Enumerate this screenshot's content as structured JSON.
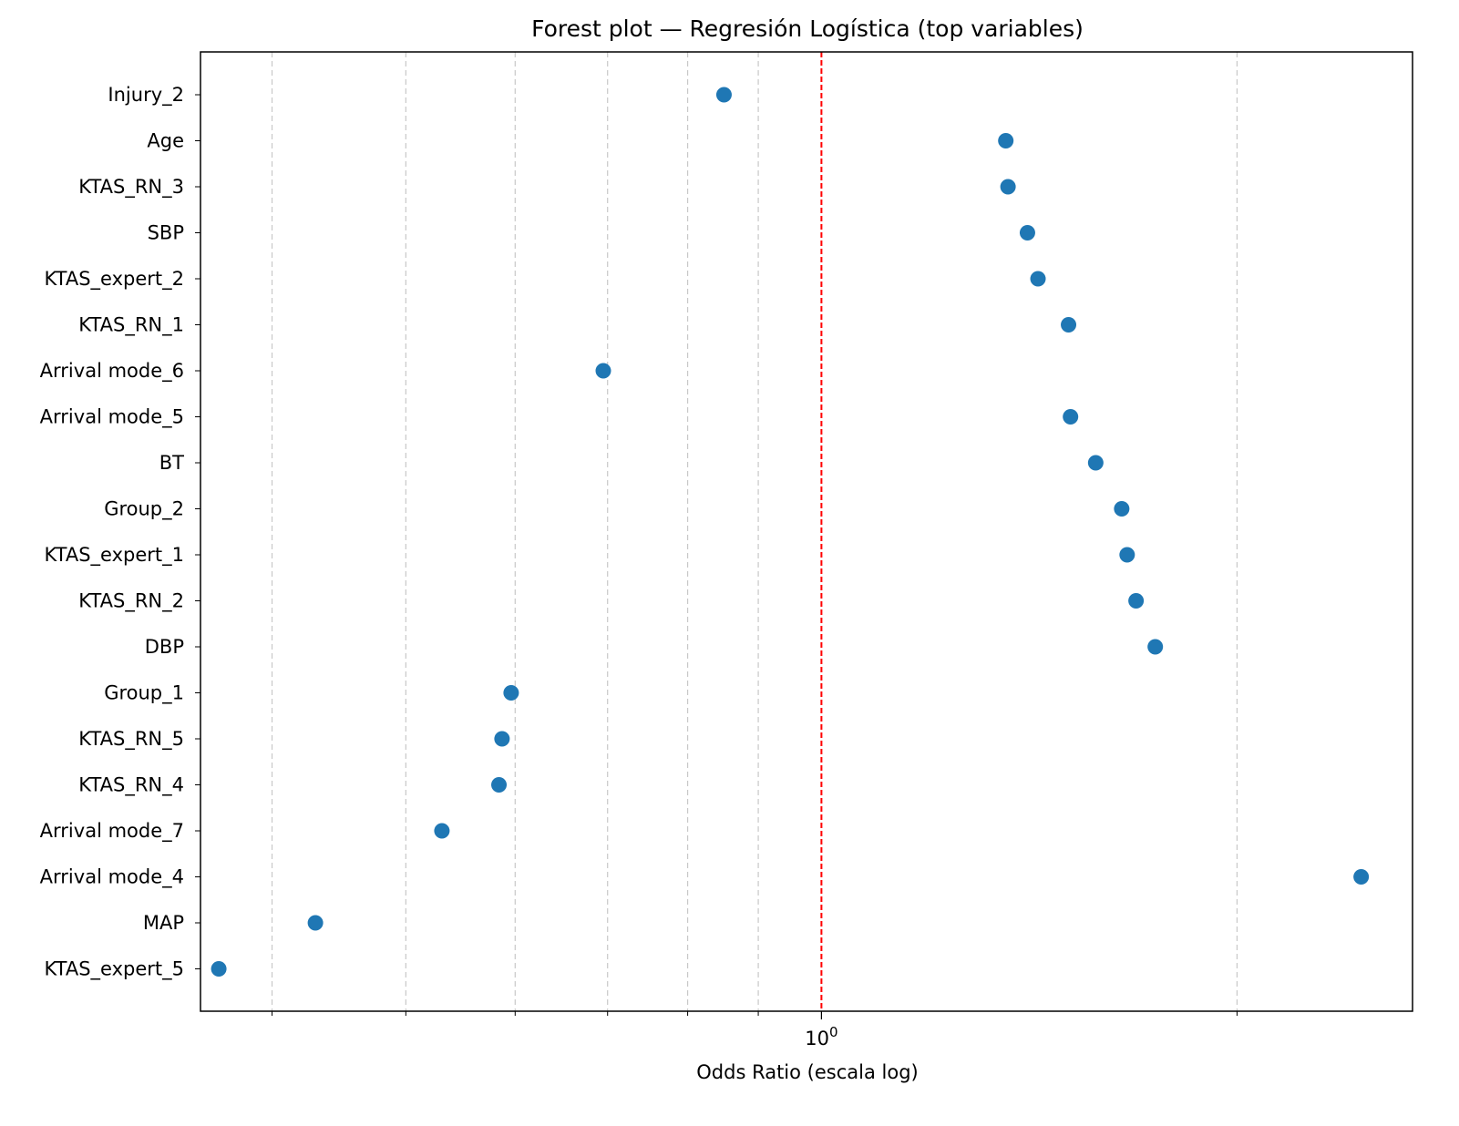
{
  "chart_data": {
    "type": "scatter",
    "title": "Forest plot — Regresión Logística (top variables)",
    "xlabel": "Odds Ratio (escala log)",
    "ylabel": "",
    "xscale": "log",
    "xlim": [
      0.355,
      2.68
    ],
    "x_ticks_major": [
      {
        "value": 1,
        "label": "10^0"
      }
    ],
    "x_ticks_minor": [
      0.4,
      0.5,
      0.6,
      0.7,
      0.8,
      0.9,
      2
    ],
    "grid": "vertical dashed, x axis",
    "reference_line": {
      "x": 1,
      "color": "#ff0000",
      "style": "dashed"
    },
    "marker_color": "#1f77b4",
    "categories": [
      "Injury_2",
      "Age",
      "KTAS_RN_3",
      "SBP",
      "KTAS_expert_2",
      "KTAS_RN_1",
      "Arrival mode_6",
      "Arrival mode_5",
      "BT",
      "Group_2",
      "KTAS_expert_1",
      "KTAS_RN_2",
      "DBP",
      "Group_1",
      "KTAS_RN_5",
      "KTAS_RN_4",
      "Arrival mode_7",
      "Arrival mode_4",
      "MAP",
      "KTAS_expert_5"
    ],
    "values": [
      0.85,
      1.36,
      1.365,
      1.41,
      1.435,
      1.51,
      0.695,
      1.515,
      1.58,
      1.65,
      1.665,
      1.69,
      1.745,
      0.596,
      0.587,
      0.584,
      0.531,
      2.46,
      0.43,
      0.366
    ]
  }
}
